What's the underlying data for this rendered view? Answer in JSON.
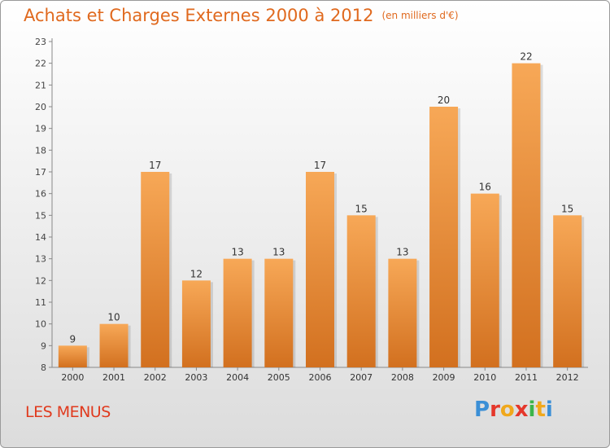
{
  "title": "Achats et Charges Externes 2000 à 2012",
  "subtitle": "(en milliers d'€)",
  "place_name": "LES MENUS",
  "logo": {
    "letters": [
      "P",
      "r",
      "o",
      "x",
      "i",
      "t",
      "i"
    ]
  },
  "colors": {
    "bar_light": "#f7a857",
    "bar_dark": "#d2701f",
    "title": "#e0691e",
    "place": "#e03a1e"
  },
  "chart_data": {
    "type": "bar",
    "title": "Achats et Charges Externes 2000 à 2012",
    "subtitle": "(en milliers d'€)",
    "categories": [
      "2000",
      "2001",
      "2002",
      "2003",
      "2004",
      "2005",
      "2006",
      "2007",
      "2008",
      "2009",
      "2010",
      "2011",
      "2012"
    ],
    "values": [
      9,
      10,
      17,
      12,
      13,
      13,
      17,
      15,
      13,
      20,
      16,
      22,
      15
    ],
    "ylim": [
      8,
      23
    ],
    "yticks": [
      8,
      9,
      10,
      11,
      12,
      13,
      14,
      15,
      16,
      17,
      18,
      19,
      20,
      21,
      22,
      23
    ],
    "xlabel": "",
    "ylabel": "",
    "grid": false,
    "data_labels": true
  }
}
